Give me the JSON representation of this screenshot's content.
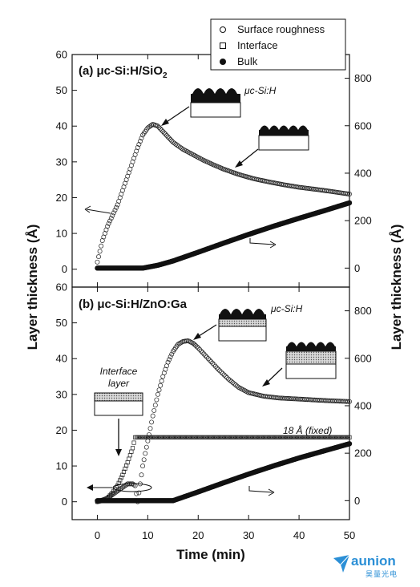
{
  "chart_data": {
    "type": "scatter",
    "xlabel": "Time (min)",
    "ylabel_left": "Layer thickness (Å)",
    "ylabel_right": "Layer thickness (Å)",
    "xlim": [
      -5,
      50
    ],
    "xticks": [
      "0",
      "10",
      "20",
      "30",
      "40",
      "50"
    ],
    "legend": {
      "placement": "top-right",
      "entries": [
        "Surface roughness",
        "Interface",
        "Bulk"
      ]
    },
    "panels": [
      {
        "label_prefix": "(a) ",
        "label_main": "μc-Si:H/SiO",
        "label_sub": "2",
        "ylim_left": [
          -5,
          60
        ],
        "yticks_left": [
          "0",
          "10",
          "20",
          "30",
          "40",
          "50",
          "60"
        ],
        "ylim_right": [
          -80,
          900
        ],
        "yticks_right": [
          "0",
          "200",
          "400",
          "600",
          "800"
        ],
        "annotations": [
          "μc-Si:H"
        ],
        "series": [
          {
            "name": "Surface roughness",
            "marker": "open-circle",
            "axis": "left",
            "x": [
              0,
              0.5,
              1,
              2,
              3,
              4,
              5,
              6,
              7,
              8,
              9,
              10,
              11,
              12,
              13,
              14,
              15,
              17,
              19,
              21,
              23,
              25,
              28,
              31,
              34,
              37,
              40,
              44,
              47,
              50
            ],
            "y": [
              2,
              5,
              8,
              12,
              15,
              18,
              22,
              26,
              30,
              34,
              37.5,
              39.5,
              40.5,
              40,
              38.5,
              37,
              35.5,
              33.5,
              32,
              30.5,
              29.2,
              28,
              26.5,
              25.3,
              24.4,
              23.6,
              22.9,
              22.2,
              21.6,
              21
            ]
          },
          {
            "name": "Bulk",
            "marker": "filled-circle",
            "axis": "right",
            "x": [
              0,
              3,
              6,
              9,
              12,
              15,
              20,
              25,
              30,
              35,
              40,
              45,
              50
            ],
            "y": [
              0,
              0,
              0,
              0,
              12,
              30,
              67,
              105,
              142,
              177,
              210,
              242,
              275
            ]
          }
        ]
      },
      {
        "label_prefix": "(b) ",
        "label_main": "μc-Si:H/ZnO:Ga",
        "label_sub": "",
        "ylim_left": [
          -5,
          60
        ],
        "yticks_left": [
          "0",
          "10",
          "20",
          "30",
          "40",
          "50",
          "60"
        ],
        "ylim_right": [
          -80,
          900
        ],
        "yticks_right": [
          "0",
          "200",
          "400",
          "600",
          "800"
        ],
        "annotations": [
          "μc-Si:H",
          "Interface",
          "layer",
          "18 Å (fixed)"
        ],
        "interface_fixed_value": 18,
        "series": [
          {
            "name": "Surface roughness",
            "marker": "open-circle",
            "axis": "left",
            "x": [
              0,
              1,
              2,
              3,
              4,
              5,
              6,
              7,
              7.5,
              8,
              8.5,
              9,
              10,
              11,
              12,
              13,
              14,
              15,
              16,
              17,
              18,
              19,
              20,
              22,
              24,
              26,
              28,
              30,
              33,
              36,
              40,
              45,
              50
            ],
            "y": [
              0,
              0.5,
              1,
              2,
              3,
              4,
              5,
              5,
              4.5,
              0,
              5,
              10,
              17,
              24,
              30,
              35,
              39,
              42,
              44,
              44.8,
              45,
              44.3,
              43,
              40,
              37,
              34.3,
              32,
              30.5,
              29.5,
              29,
              28.7,
              28.3,
              28
            ]
          },
          {
            "name": "Interface",
            "marker": "open-square",
            "axis": "left",
            "x": [
              0,
              1,
              2,
              3,
              4,
              5,
              6,
              7,
              7.5,
              8,
              10,
              15,
              20,
              25,
              30,
              35,
              40,
              45,
              50
            ],
            "y": [
              0,
              0.3,
              1,
              2.5,
              4.5,
              7.5,
              11,
              15,
              18,
              18,
              18,
              18,
              18,
              18,
              18,
              18,
              18,
              18,
              18
            ]
          },
          {
            "name": "Bulk",
            "marker": "filled-circle",
            "axis": "right",
            "x": [
              0,
              4,
              8,
              12,
              15,
              20,
              25,
              30,
              35,
              40,
              45,
              50
            ],
            "y": [
              0,
              0,
              0,
              0,
              0,
              37,
              75,
              112,
              147,
              180,
              210,
              240
            ]
          }
        ]
      }
    ]
  },
  "watermark": {
    "name": "aunion",
    "sub": "昊量光电",
    "color": "#2b8fd6"
  }
}
